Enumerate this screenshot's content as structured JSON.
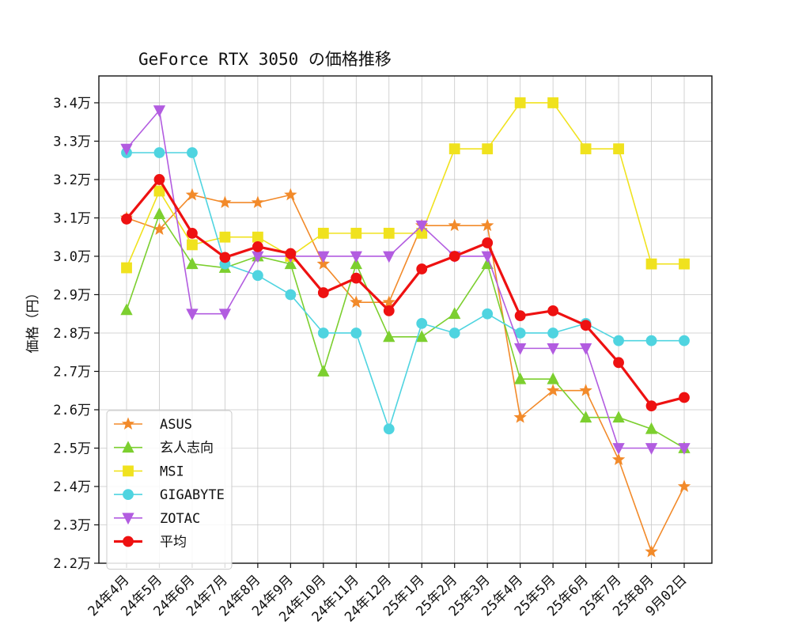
{
  "chart_data": {
    "type": "line",
    "title": "GeForce RTX 3050 の価格推移",
    "xlabel": "",
    "ylabel": "価格（円）",
    "ylim": [
      22000,
      34700
    ],
    "grid": true,
    "legend_position": "bottom-left",
    "categories": [
      "24年4月",
      "24年5月",
      "24年6月",
      "24年7月",
      "24年8月",
      "24年9月",
      "24年10月",
      "24年11月",
      "24年12月",
      "25年1月",
      "25年2月",
      "25年3月",
      "25年4月",
      "25年5月",
      "25年6月",
      "25年7月",
      "25年8月",
      "9月02日"
    ],
    "y_ticks": [
      22000,
      23000,
      24000,
      25000,
      26000,
      27000,
      28000,
      29000,
      30000,
      31000,
      32000,
      33000,
      34000
    ],
    "y_tick_labels": [
      "2.2万",
      "2.3万",
      "2.4万",
      "2.5万",
      "2.6万",
      "2.7万",
      "2.8万",
      "2.9万",
      "3.0万",
      "3.1万",
      "3.2万",
      "3.3万",
      "3.4万"
    ],
    "series": [
      {
        "name": "ASUS",
        "color": "#f28a2a",
        "marker": "star",
        "line_width": 1.6,
        "values": [
          31000,
          30700,
          31600,
          31400,
          31400,
          31600,
          29800,
          28800,
          28800,
          30800,
          30800,
          30800,
          25800,
          26500,
          26500,
          24700,
          22300,
          24000
        ]
      },
      {
        "name": "玄人志向",
        "color": "#7ccf2f",
        "marker": "triangle-up",
        "line_width": 1.6,
        "values": [
          28600,
          31100,
          29800,
          29700,
          30000,
          29800,
          27000,
          29800,
          27900,
          27900,
          28500,
          29800,
          26800,
          26800,
          25800,
          25800,
          25500,
          25000
        ]
      },
      {
        "name": "MSI",
        "color": "#f0e21e",
        "marker": "square",
        "line_width": 1.6,
        "values": [
          29700,
          31700,
          30300,
          30500,
          30500,
          30000,
          30600,
          30600,
          30600,
          30600,
          32800,
          32800,
          34000,
          34000,
          32800,
          32800,
          29800,
          29800
        ]
      },
      {
        "name": "GIGABYTE",
        "color": "#4fd4e0",
        "marker": "circle",
        "line_width": 1.6,
        "values": [
          32700,
          32700,
          32700,
          29800,
          29500,
          29000,
          28000,
          28000,
          25500,
          28250,
          28000,
          28500,
          28000,
          28000,
          28250,
          27800,
          27800,
          27800
        ]
      },
      {
        "name": "ZOTAC",
        "color": "#b25ce0",
        "marker": "triangle-down",
        "line_width": 1.6,
        "values": [
          32800,
          33800,
          28500,
          28500,
          30000,
          30000,
          30000,
          30000,
          30000,
          30800,
          30000,
          30000,
          27600,
          27600,
          27600,
          25000,
          25000,
          25000
        ]
      },
      {
        "name": "平均",
        "color": "#ee1111",
        "marker": "circle",
        "line_width": 3.2,
        "values": [
          30970,
          32000,
          30600,
          29970,
          30250,
          30070,
          29050,
          29430,
          28580,
          29670,
          30000,
          30350,
          28450,
          28580,
          28200,
          27230,
          26100,
          26320
        ]
      }
    ]
  }
}
